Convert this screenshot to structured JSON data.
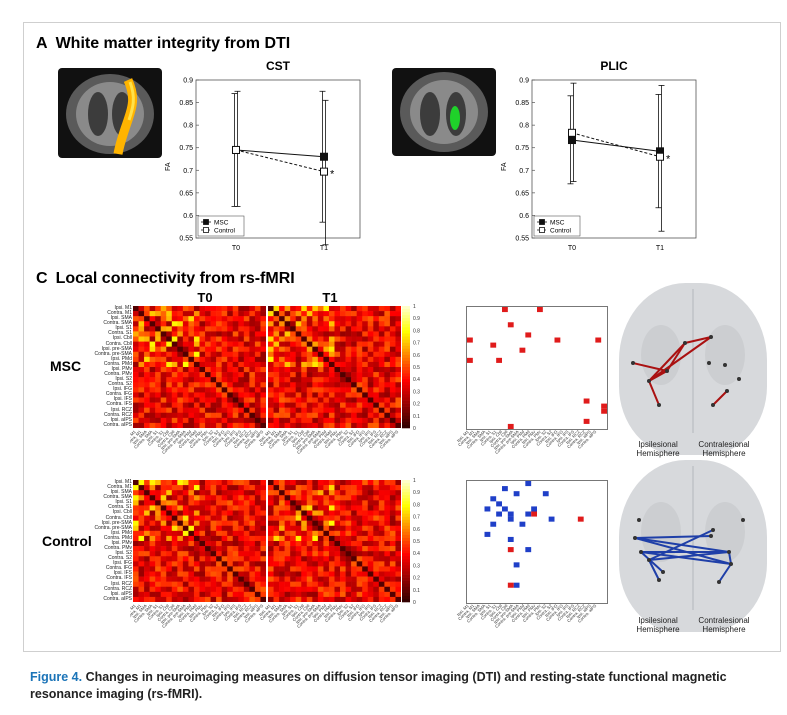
{
  "sectionA": {
    "letter": "A",
    "title": "White matter integrity from DTI"
  },
  "sectionC": {
    "letter": "C",
    "title": "Local connectivity from rs-fMRI"
  },
  "charts": [
    {
      "title": "CST"
    },
    {
      "title": "PLIC"
    }
  ],
  "chart_data": [
    {
      "type": "line",
      "title": "CST",
      "xlabel": "",
      "ylabel": "FA",
      "categories": [
        "T0",
        "T1"
      ],
      "ylim": [
        0.55,
        0.9
      ],
      "yticks": [
        0.55,
        0.6,
        0.65,
        0.7,
        0.75,
        0.8,
        0.85,
        0.9
      ],
      "legend": "bottom-left",
      "annotation": "*",
      "series": [
        {
          "name": "MSC",
          "values": [
            0.745,
            0.73
          ],
          "err_low": [
            0.62,
            0.585
          ],
          "err_high": [
            0.87,
            0.875
          ],
          "marker": "filled-square",
          "line": "solid"
        },
        {
          "name": "Control",
          "values": [
            0.745,
            0.697
          ],
          "err_low": [
            0.62,
            0.535
          ],
          "err_high": [
            0.875,
            0.855
          ],
          "marker": "open-square",
          "line": "dashed"
        }
      ]
    },
    {
      "type": "line",
      "title": "PLIC",
      "xlabel": "",
      "ylabel": "FA",
      "categories": [
        "T0",
        "T1"
      ],
      "ylim": [
        0.55,
        0.9
      ],
      "yticks": [
        0.55,
        0.6,
        0.65,
        0.7,
        0.75,
        0.8,
        0.85,
        0.9
      ],
      "legend": "bottom-left",
      "annotation": "*",
      "series": [
        {
          "name": "MSC",
          "values": [
            0.767,
            0.742
          ],
          "err_low": [
            0.67,
            0.617
          ],
          "err_high": [
            0.865,
            0.868
          ],
          "marker": "filled-square",
          "line": "solid"
        },
        {
          "name": "Control",
          "values": [
            0.783,
            0.73
          ],
          "err_low": [
            0.675,
            0.565
          ],
          "err_high": [
            0.893,
            0.888
          ],
          "marker": "open-square",
          "line": "dashed"
        }
      ]
    }
  ],
  "matrix": {
    "col_titles": [
      "T0",
      "T1"
    ],
    "row_labels": [
      "MSC",
      "Control"
    ],
    "colorbar_ticks": [
      "1",
      "0.9",
      "0.8",
      "0.7",
      "0.6",
      "0.5",
      "0.4",
      "0.3",
      "0.2",
      "0.1",
      "0"
    ],
    "regions": [
      "Ipsi. M1",
      "Contra. M1",
      "Ipsi. SMA",
      "Contra. SMA",
      "Ipsi. S1",
      "Contra. S1",
      "Ipsi. Cbll",
      "Contra. Cbll",
      "Ipsi. pre-SMA",
      "Contra. pre-SMA",
      "Ipsi. PMd",
      "Contra. PMd",
      "Ipsi. PMv",
      "Contra. PMv",
      "Ipsi. S2",
      "Contra. S2",
      "Ipsi. IFG",
      "Contra. IFG",
      "Ipsi. IFS",
      "Contra. IFS",
      "Ipsi. RCZ",
      "Contra. RCZ",
      "Ipsi. aIPS",
      "Contra. aIPS"
    ]
  },
  "brain3d": {
    "left_label": "Ipsilesional Hemisphere",
    "right_label": "Contralesional Hemisphere"
  },
  "caption": {
    "figure": "Figure 4.",
    "text": " Changes in neuroimaging measures on diffusion tensor imaging (DTI) and resting-state functional magnetic resonance imaging (rs-fMRI)."
  },
  "colors": {
    "msc_sig": "#e01b1b",
    "control_sig": "#1f3fc8",
    "caption_blue": "#1b74b8"
  }
}
